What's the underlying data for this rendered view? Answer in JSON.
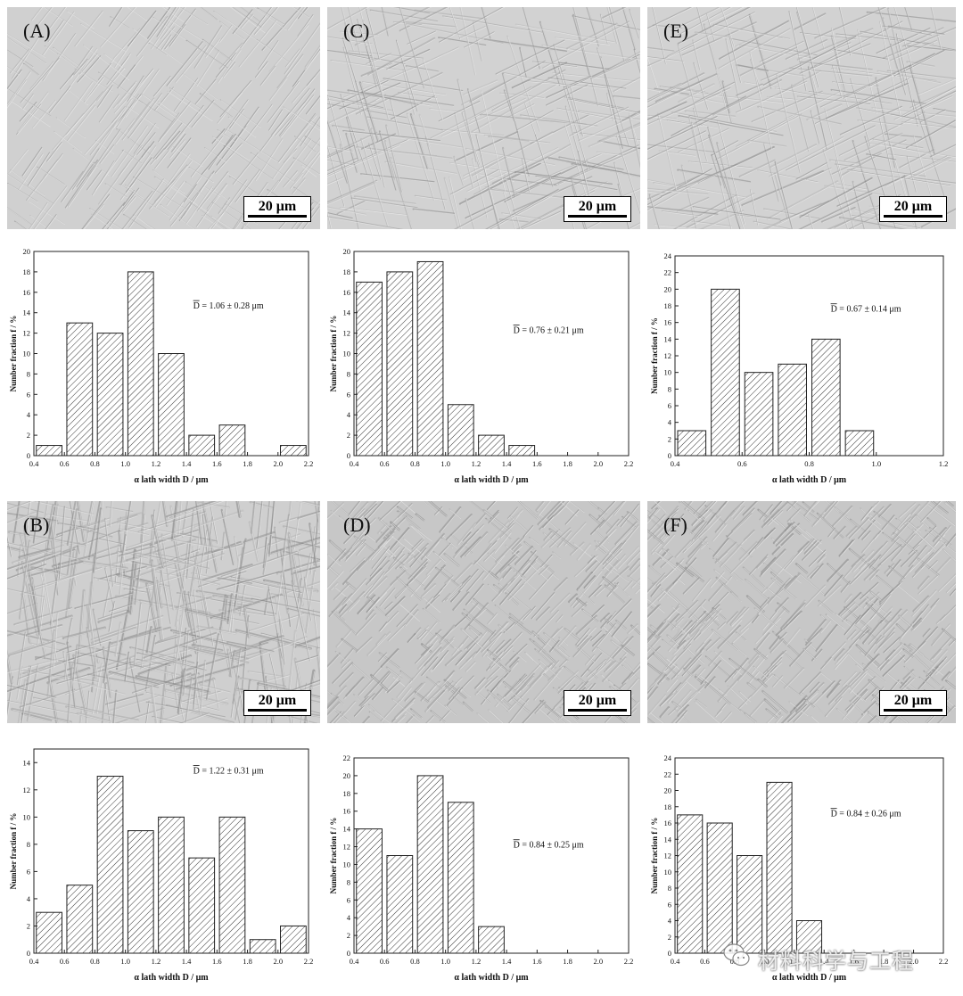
{
  "micrographs": [
    {
      "label": "(A)",
      "scale": "20 μm",
      "coarse": 1,
      "seed": 11
    },
    {
      "label": "(C)",
      "scale": "20 μm",
      "coarse": 0,
      "seed": 23
    },
    {
      "label": "(E)",
      "scale": "20 μm",
      "coarse": 0,
      "seed": 37
    },
    {
      "label": "(B)",
      "scale": "20 μm",
      "coarse": 2,
      "seed": 41
    },
    {
      "label": "(D)",
      "scale": "20 μm",
      "coarse": 3,
      "seed": 53
    },
    {
      "label": "(F)",
      "scale": "20 μm",
      "coarse": 3,
      "seed": 67
    }
  ],
  "chart_data": [
    {
      "type": "bar",
      "panel": "A",
      "xlabel": "α lath width D / μm",
      "ylabel": "Number fraction f / %",
      "xlim": [
        0.4,
        2.2
      ],
      "ylim": [
        0,
        20
      ],
      "xticks": [
        "0.4",
        "0.6",
        "0.8",
        "1.0",
        "1.2",
        "1.4",
        "1.6",
        "1.8",
        "2.0",
        "2.2"
      ],
      "yticks": [
        "0",
        "2",
        "4",
        "6",
        "8",
        "10",
        "12",
        "14",
        "16",
        "18",
        "20"
      ],
      "bins": [
        [
          0.5,
          1
        ],
        [
          0.7,
          13
        ],
        [
          0.9,
          12
        ],
        [
          1.1,
          18
        ],
        [
          1.3,
          10
        ],
        [
          1.5,
          2
        ],
        [
          1.7,
          3
        ],
        [
          2.1,
          1
        ]
      ],
      "bin_width": 0.2,
      "annotation": "D = 1.06 ± 0.28 μm"
    },
    {
      "type": "bar",
      "panel": "C",
      "xlabel": "α lath width D / μm",
      "ylabel": "Number fraction f / %",
      "xlim": [
        0.4,
        2.2
      ],
      "ylim": [
        0,
        20
      ],
      "xticks": [
        "0.4",
        "0.6",
        "0.8",
        "1.0",
        "1.2",
        "1.4",
        "1.6",
        "1.8",
        "2.0",
        "2.2"
      ],
      "yticks": [
        "0",
        "2",
        "4",
        "6",
        "8",
        "10",
        "12",
        "14",
        "16",
        "18",
        "20"
      ],
      "bins": [
        [
          0.5,
          17
        ],
        [
          0.7,
          18
        ],
        [
          0.9,
          19
        ],
        [
          1.1,
          5
        ],
        [
          1.3,
          2
        ],
        [
          1.5,
          1
        ]
      ],
      "bin_width": 0.2,
      "annotation": "D = 0.76 ± 0.21 μm"
    },
    {
      "type": "bar",
      "panel": "E",
      "xlabel": "α lath width D / μm",
      "ylabel": "Number fraction f / %",
      "xlim": [
        0.4,
        1.2
      ],
      "ylim": [
        0,
        24
      ],
      "xticks": [
        "0.4",
        "0.6",
        "0.8",
        "1.0",
        "1.2"
      ],
      "yticks": [
        "0",
        "2",
        "4",
        "6",
        "8",
        "10",
        "12",
        "14",
        "16",
        "18",
        "20",
        "22",
        "24"
      ],
      "bins": [
        [
          0.45,
          3
        ],
        [
          0.55,
          20
        ],
        [
          0.65,
          10
        ],
        [
          0.75,
          11
        ],
        [
          0.85,
          14
        ],
        [
          0.95,
          3
        ]
      ],
      "bin_width": 0.1,
      "annotation": "D = 0.67 ± 0.14 μm"
    },
    {
      "type": "bar",
      "panel": "B",
      "xlabel": "α lath width D / μm",
      "ylabel": "Number fraction f / %",
      "xlim": [
        0.4,
        2.2
      ],
      "ylim": [
        0,
        15
      ],
      "xticks": [
        "0.4",
        "0.6",
        "0.8",
        "1.0",
        "1.2",
        "1.4",
        "1.6",
        "1.8",
        "2.0",
        "2.2"
      ],
      "yticks": [
        "0",
        "2",
        "4",
        "6",
        "8",
        "10",
        "12",
        "14"
      ],
      "bins": [
        [
          0.5,
          3
        ],
        [
          0.7,
          5
        ],
        [
          0.9,
          13
        ],
        [
          1.1,
          9
        ],
        [
          1.3,
          10
        ],
        [
          1.5,
          7
        ],
        [
          1.7,
          10
        ],
        [
          1.9,
          1
        ],
        [
          2.1,
          2
        ]
      ],
      "bin_width": 0.2,
      "annotation": "D = 1.22 ± 0.31 μm"
    },
    {
      "type": "bar",
      "panel": "D",
      "xlabel": "α lath width D / μm",
      "ylabel": "Number fraction f / %",
      "xlim": [
        0.4,
        2.2
      ],
      "ylim": [
        0,
        22
      ],
      "xticks": [
        "0.4",
        "0.6",
        "0.8",
        "1.0",
        "1.2",
        "1.4",
        "1.6",
        "1.8",
        "2.0",
        "2.2"
      ],
      "yticks": [
        "0",
        "2",
        "4",
        "6",
        "8",
        "10",
        "12",
        "14",
        "16",
        "18",
        "20",
        "22"
      ],
      "bins": [
        [
          0.5,
          14
        ],
        [
          0.7,
          11
        ],
        [
          0.9,
          20
        ],
        [
          1.1,
          17
        ],
        [
          1.3,
          3
        ]
      ],
      "bin_width": 0.2,
      "annotation": "D = 0.84 ± 0.25 μm"
    },
    {
      "type": "bar",
      "panel": "F",
      "xlabel": "α lath width D / μm",
      "ylabel": "Number fraction f / %",
      "xlim": [
        0.4,
        2.2
      ],
      "ylim": [
        0,
        24
      ],
      "xticks": [
        "0.4",
        "0.6",
        "0.8",
        "1.0",
        "1.2",
        "1.4",
        "1.6",
        "1.8",
        "2.0",
        "2.2"
      ],
      "yticks": [
        "0",
        "2",
        "4",
        "6",
        "8",
        "10",
        "12",
        "14",
        "16",
        "18",
        "20",
        "22",
        "24"
      ],
      "bins": [
        [
          0.5,
          17
        ],
        [
          0.7,
          16
        ],
        [
          0.9,
          12
        ],
        [
          1.1,
          21
        ],
        [
          1.3,
          4
        ]
      ],
      "bin_width": 0.2,
      "annotation": "D = 0.84 ± 0.26 μm"
    }
  ],
  "watermark": {
    "text": "材料科学与工程"
  }
}
